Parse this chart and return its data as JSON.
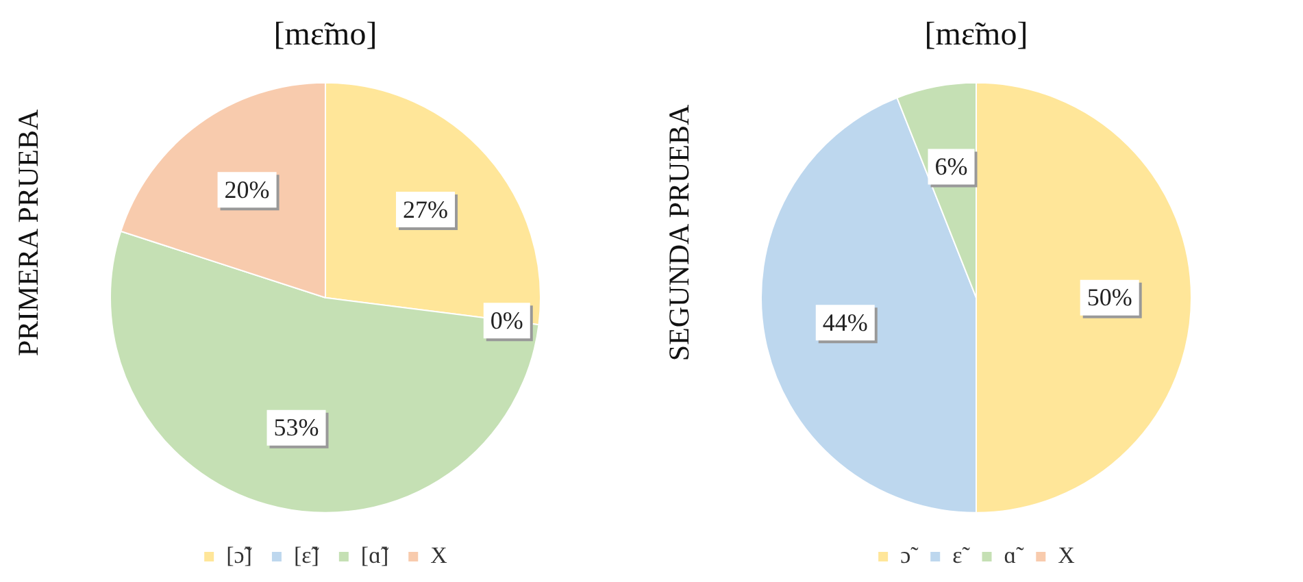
{
  "chart_data": [
    {
      "type": "pie",
      "title": "[mɛ̃mo]",
      "ylabel": "PRIMERA PRUEBA",
      "categories": [
        "[ɔ̃]",
        "[ɛ̃]",
        "[ɑ̃]",
        "X"
      ],
      "values": [
        27,
        0,
        53,
        20
      ],
      "colors": [
        "#ffe699",
        "#bdd7ee",
        "#c5e0b4",
        "#f8cbad"
      ],
      "value_labels": [
        "27%",
        "0%",
        "53%",
        "20%"
      ],
      "legend": "bottom"
    },
    {
      "type": "pie",
      "title": "[mɛ̃mo]",
      "ylabel": "SEGUNDA PRUEBA",
      "categories": [
        "ɔ̃",
        "ɛ̃",
        "ɑ̃",
        "X"
      ],
      "values": [
        50,
        44,
        6,
        0
      ],
      "colors": [
        "#ffe699",
        "#bdd7ee",
        "#c5e0b4",
        "#f8cbad"
      ],
      "value_labels": [
        "50%",
        "44%",
        "6%",
        null
      ],
      "legend": "bottom"
    }
  ]
}
